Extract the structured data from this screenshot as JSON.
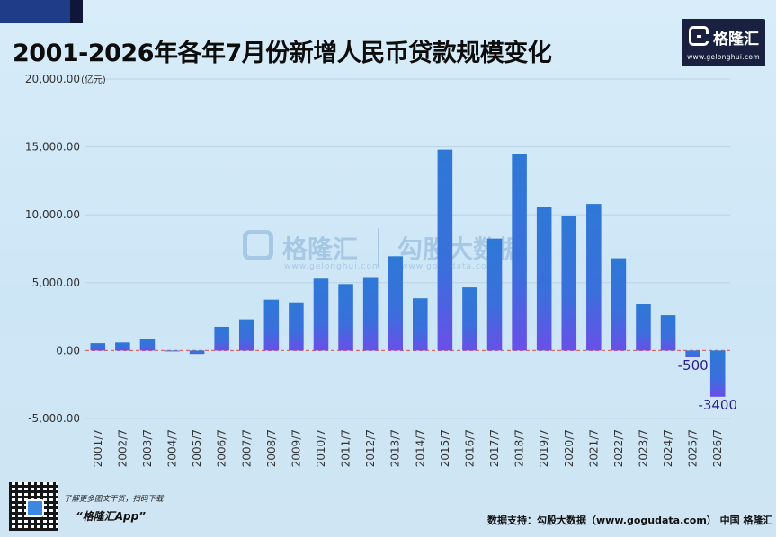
{
  "title": "2001-2026年各年7月份新增人民币贷款规模变化",
  "brand": {
    "name": "格隆汇",
    "url": "www.gelonghui.com"
  },
  "watermark": {
    "brand_name": "格隆汇",
    "brand_url": "www.gelonghui.com",
    "partner_name": "勾股大数据",
    "partner_url": "www.gogudata.com"
  },
  "footer": {
    "tip": "了解更多图文干货，扫码下载",
    "app": "“格隆汇App”",
    "source": "数据支持：勾股大数据（www.gogudata.com）  中国   格隆汇"
  },
  "colors": {
    "bar_top": "#2e78d6",
    "bar_bottom": "#6a4fe8",
    "zero_line": "#e06a6a",
    "axis_text": "#333333",
    "label_text": "#2a1e8c"
  },
  "chart_data": {
    "type": "bar",
    "title": "2001-2026年各年7月份新增人民币贷款规模变化",
    "unit": "(亿元)",
    "xlabel": "",
    "ylabel": "",
    "ylim": [
      -5000,
      20000
    ],
    "yticks": [
      "-5,000.00",
      "0.00",
      "5,000.00",
      "10,000.00",
      "15,000.00",
      "20,000.00"
    ],
    "ytick_values": [
      -5000,
      0,
      5000,
      10000,
      15000,
      20000
    ],
    "grid": true,
    "legend": "none",
    "categories": [
      "2001/7",
      "2002/7",
      "2003/7",
      "2004/7",
      "2005/7",
      "2006/7",
      "2007/7",
      "2008/7",
      "2009/7",
      "2010/7",
      "2011/7",
      "2012/7",
      "2013/7",
      "2014/7",
      "2015/7",
      "2016/7",
      "2017/7",
      "2018/7",
      "2019/7",
      "2020/7",
      "2021/7",
      "2022/7",
      "2023/7",
      "2024/7",
      "2025/7",
      "2026/7"
    ],
    "values": [
      550,
      600,
      850,
      -50,
      -250,
      1750,
      2300,
      3750,
      3550,
      5300,
      4900,
      5350,
      6950,
      3850,
      14800,
      4650,
      8250,
      14500,
      10550,
      9900,
      10800,
      6800,
      3450,
      2600,
      -500,
      -3400
    ],
    "data_labels": [
      {
        "category": "2025/7",
        "text": "-500"
      },
      {
        "category": "2026/7",
        "text": "-3400"
      }
    ]
  }
}
